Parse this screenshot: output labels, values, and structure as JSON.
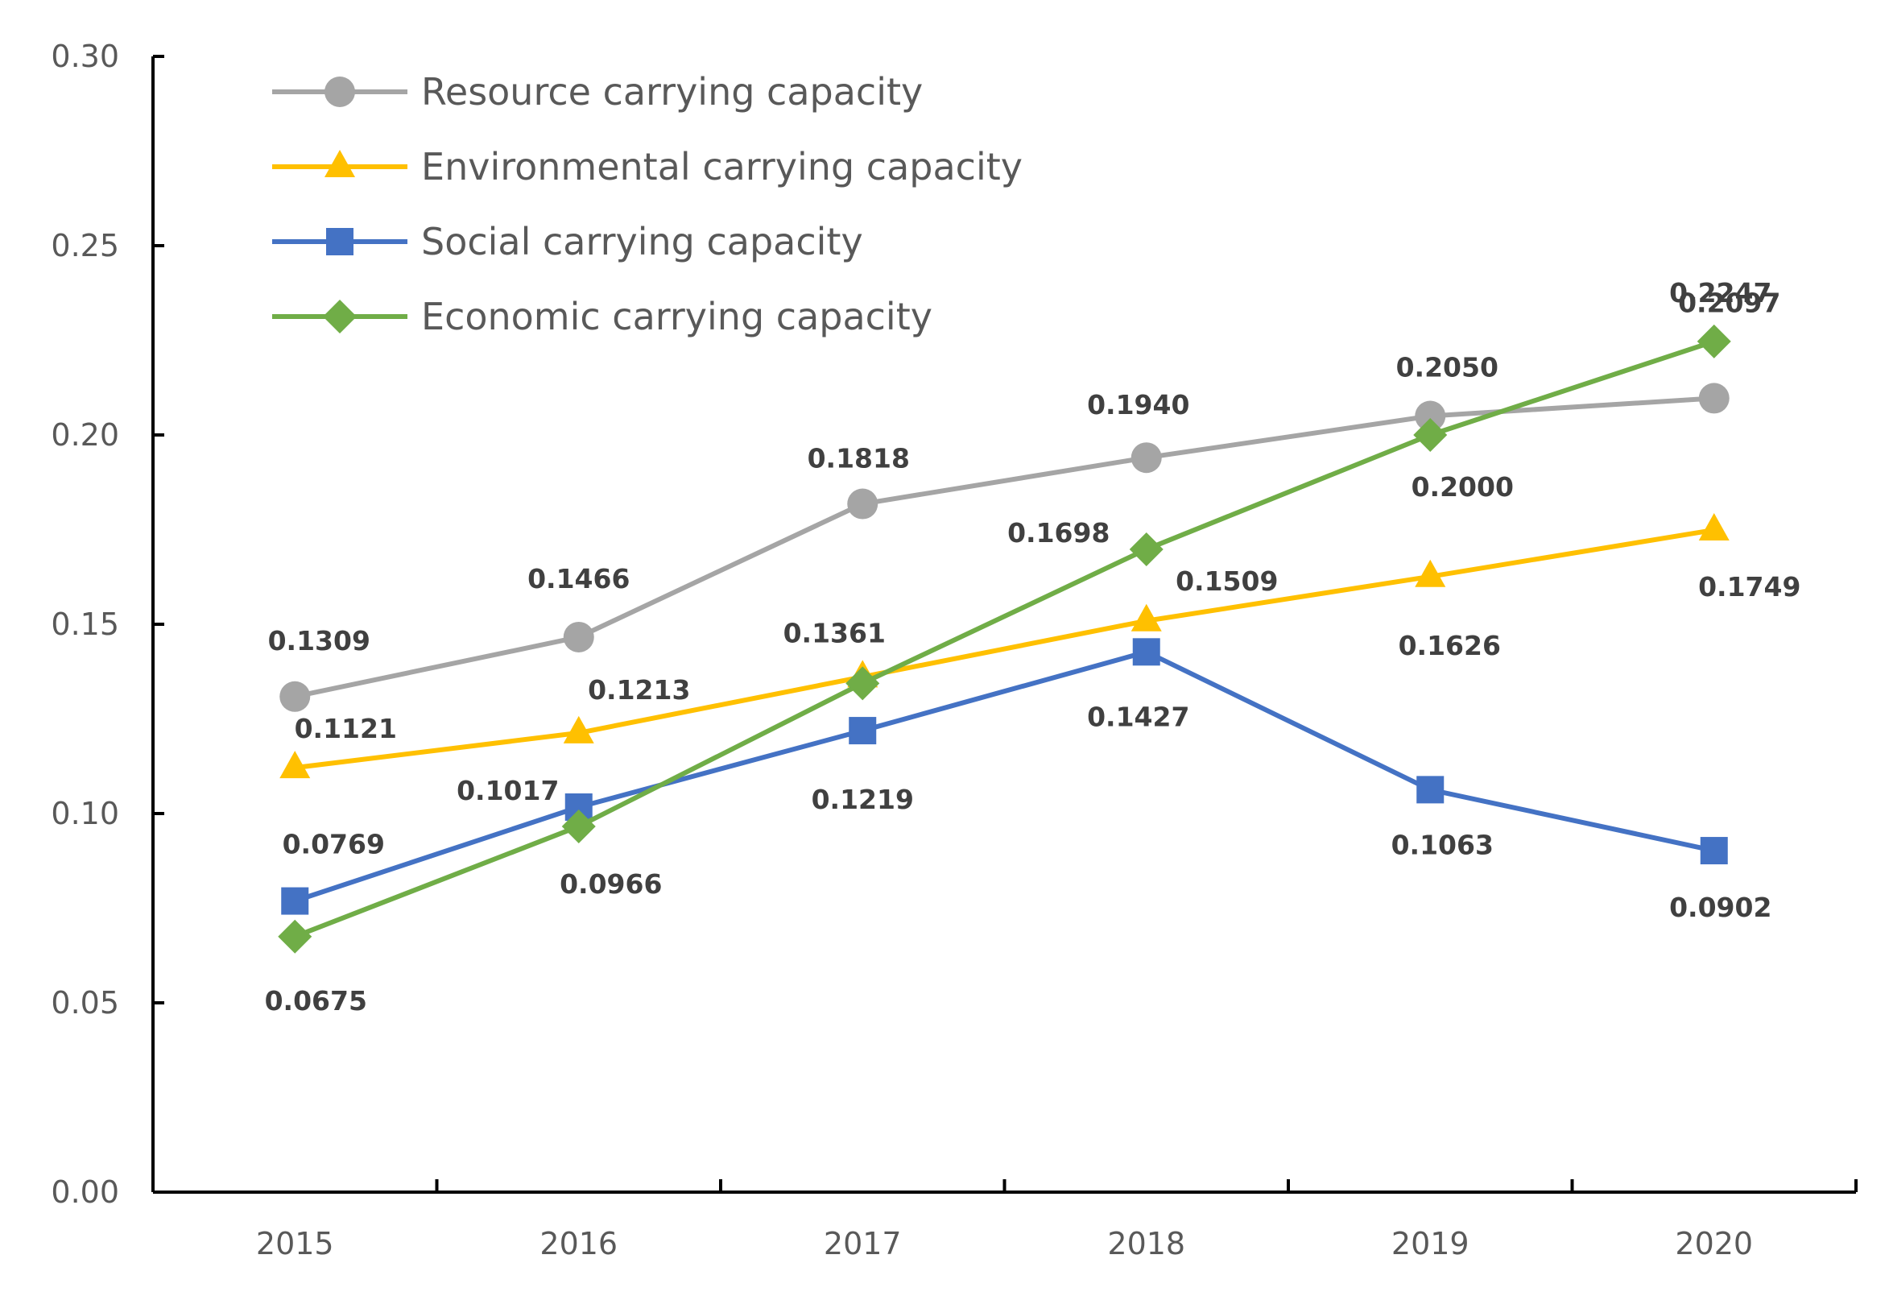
{
  "chart_data": {
    "type": "line",
    "title": "",
    "xlabel": "",
    "ylabel": "",
    "categories": [
      "2015",
      "2016",
      "2017",
      "2018",
      "2019",
      "2020"
    ],
    "ylim": [
      0,
      0.3
    ],
    "yticks": [
      "0.00",
      "0.05",
      "0.10",
      "0.15",
      "0.20",
      "0.25",
      "0.30"
    ],
    "grid": false,
    "legend_position": "top-left",
    "series": [
      {
        "name": "Resource carrying capacity",
        "marker": "circle",
        "color": "#a5a5a5",
        "values": [
          0.1309,
          0.1466,
          0.1818,
          0.194,
          0.205,
          0.2097
        ],
        "labels": [
          "0.1309",
          "0.1466",
          "0.1818",
          "0.1940",
          "0.2050",
          "0.2097"
        ]
      },
      {
        "name": "Environmental carrying capacity",
        "marker": "triangle",
        "color": "#ffc000",
        "values": [
          0.1121,
          0.1213,
          0.1361,
          0.1509,
          0.1626,
          0.1749
        ],
        "labels": [
          "0.1121",
          "0.1213",
          "0.1361",
          "0.1509",
          "0.1626",
          "0.1749"
        ]
      },
      {
        "name": "Social carrying capacity",
        "marker": "square",
        "color": "#4472c4",
        "values": [
          0.0769,
          0.1017,
          0.1219,
          0.1427,
          0.1063,
          0.0902
        ],
        "labels": [
          "0.0769",
          "0.1017",
          "0.1219",
          "0.1427",
          "0.1063",
          "0.0902"
        ]
      },
      {
        "name": "Economic carrying capacity",
        "marker": "diamond",
        "color": "#70ad47",
        "values": [
          0.0675,
          0.0966,
          0.1344,
          0.1698,
          0.2,
          0.2247
        ],
        "labels": [
          "0.0675",
          "0.0966",
          "",
          "0.1698",
          "0.2000",
          "0.2247"
        ]
      }
    ]
  }
}
